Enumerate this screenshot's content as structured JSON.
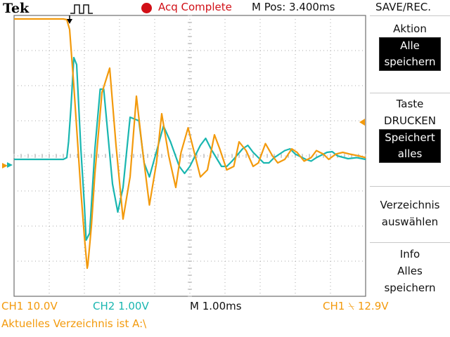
{
  "header": {
    "brand": "Tek",
    "acq_status": "Acq Complete",
    "mpos": "M Pos: 3.400ms",
    "menu_title": "SAVE/REC."
  },
  "menu": [
    {
      "label": "Aktion",
      "box": [
        "Alle",
        "speichern"
      ]
    },
    {
      "label": "Taste",
      "label2": "DRUCKEN",
      "box": [
        "Speichert",
        "alles"
      ]
    },
    {
      "label": "Verzeichnis",
      "label2": "auswählen"
    },
    {
      "label": "Info",
      "label2": "Alles",
      "label3": "speichern"
    }
  ],
  "footer": {
    "ch1_scale": "CH1  10.0V",
    "ch2_scale": "CH2  1.00V",
    "time_scale": "M 1.00ms",
    "trigger": "CH1 ⍀ 12.9V",
    "status": "Aktuelles Verzeichnis ist A:\\"
  },
  "colors": {
    "ch1": "#f39a0c",
    "ch2": "#19b6b0",
    "grid": "#a8a8a8",
    "run": "#d10f16"
  },
  "chart_data": {
    "type": "line",
    "x_unit": "ms",
    "time_per_div_ms": 1.0,
    "x_divisions": 10,
    "y_divisions": 8,
    "grid": true,
    "series": [
      {
        "name": "CH1",
        "x": [
          0,
          1.4,
          1.5,
          1.58,
          1.7,
          1.8,
          1.9,
          2.0,
          2.08,
          2.1,
          2.2,
          2.3,
          2.5,
          2.72,
          2.9,
          3.1,
          3.3,
          3.48,
          3.65,
          3.85,
          4.05,
          4.2,
          4.4,
          4.6,
          4.75,
          4.95,
          5.1,
          5.3,
          5.5,
          5.7,
          5.85,
          6.05,
          6.25,
          6.4,
          6.6,
          6.8,
          6.95,
          7.15,
          7.35,
          7.5,
          7.7,
          7.9,
          8.05,
          8.25,
          8.45,
          8.6,
          8.8,
          8.95,
          9.15,
          9.35,
          9.55,
          9.8,
          10.0
        ],
        "y": [
          3.9,
          3.9,
          3.88,
          3.6,
          2.0,
          0.5,
          -1.0,
          -2.3,
          -3.2,
          -3.1,
          -2.0,
          -0.5,
          1.8,
          2.5,
          0.3,
          -1.8,
          -0.6,
          1.7,
          0.2,
          -1.4,
          -0.2,
          1.2,
          0.0,
          -0.9,
          0.1,
          0.8,
          0.2,
          -0.6,
          -0.4,
          0.6,
          0.2,
          -0.4,
          -0.3,
          0.4,
          0.15,
          -0.3,
          -0.2,
          0.35,
          0.0,
          -0.2,
          -0.1,
          0.2,
          0.1,
          -0.15,
          -0.05,
          0.15,
          0.05,
          -0.1,
          0.05,
          0.1,
          0.05,
          0.0,
          -0.05
        ]
      },
      {
        "name": "CH2",
        "x": [
          0,
          1.4,
          1.5,
          1.55,
          1.62,
          1.7,
          1.78,
          1.9,
          2.0,
          2.05,
          2.15,
          2.3,
          2.45,
          2.55,
          2.8,
          2.95,
          3.1,
          3.3,
          3.55,
          3.7,
          3.85,
          4.1,
          4.25,
          4.45,
          4.7,
          4.85,
          5.0,
          5.3,
          5.45,
          5.6,
          5.9,
          6.05,
          6.2,
          6.5,
          6.65,
          6.8,
          7.1,
          7.25,
          7.4,
          7.7,
          7.85,
          8.0,
          8.3,
          8.45,
          8.6,
          8.9,
          9.05,
          9.2,
          9.5,
          9.75,
          10.0
        ],
        "y": [
          -0.1,
          -0.1,
          -0.05,
          0.4,
          1.4,
          2.8,
          2.6,
          0.2,
          -1.4,
          -2.4,
          -2.2,
          0.2,
          1.9,
          1.9,
          -0.8,
          -1.6,
          -0.9,
          1.1,
          1.0,
          -0.2,
          -0.6,
          0.3,
          0.85,
          0.4,
          -0.3,
          -0.5,
          -0.3,
          0.3,
          0.5,
          0.2,
          -0.3,
          -0.3,
          -0.15,
          0.2,
          0.3,
          0.1,
          -0.2,
          -0.2,
          -0.05,
          0.15,
          0.2,
          0.05,
          -0.1,
          -0.15,
          -0.05,
          0.1,
          0.12,
          0.0,
          -0.08,
          -0.05,
          -0.1
        ]
      }
    ]
  }
}
